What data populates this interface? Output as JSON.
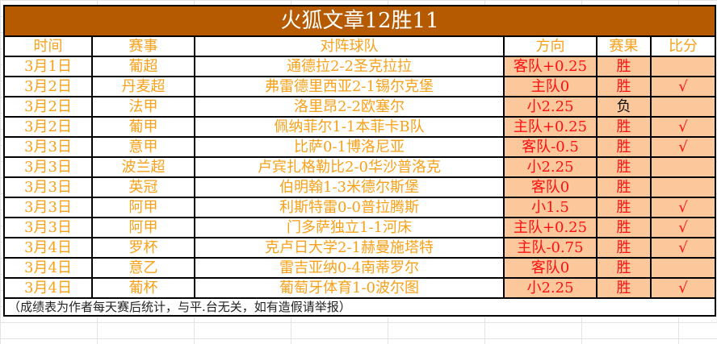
{
  "title": "火狐文章12胜11",
  "headers": [
    "时间",
    "赛事",
    "对阵球队",
    "方向",
    "赛果",
    "比分"
  ],
  "rows": [
    {
      "date": "3月1日",
      "league": "葡超",
      "match": "通德拉2-2圣克拉拉",
      "pick": "客队+0.25",
      "result": "胜",
      "score": ""
    },
    {
      "date": "3月2日",
      "league": "丹麦超",
      "match": "弗雷德里西亚2-1锡尔克堡",
      "pick": "主队0",
      "result": "胜",
      "score": "√"
    },
    {
      "date": "3月2日",
      "league": "法甲",
      "match": "洛里昂2-2欧塞尔",
      "pick": "小2.25",
      "result": "负",
      "score": ""
    },
    {
      "date": "3月2日",
      "league": "葡甲",
      "match": "佩纳菲尔1-1本菲卡B队",
      "pick": "主队+0.25",
      "result": "胜",
      "score": "√"
    },
    {
      "date": "3月3日",
      "league": "意甲",
      "match": "比萨0-1博洛尼亚",
      "pick": "客队-0.5",
      "result": "胜",
      "score": "√"
    },
    {
      "date": "3月3日",
      "league": "波兰超",
      "match": "卢宾扎格勒比2-0华沙普洛克",
      "pick": "小2.25",
      "result": "胜",
      "score": ""
    },
    {
      "date": "3月3日",
      "league": "英冠",
      "match": "伯明翰1-3米德尔斯堡",
      "pick": "客队0",
      "result": "胜",
      "score": ""
    },
    {
      "date": "3月3日",
      "league": "阿甲",
      "match": "利斯特雷0-0普拉腾斯",
      "pick": "小1.5",
      "result": "胜",
      "score": "√"
    },
    {
      "date": "3月3日",
      "league": "阿甲",
      "match": "门多萨独立1-1河床",
      "pick": "主队+0.25",
      "result": "胜",
      "score": "√"
    },
    {
      "date": "3月4日",
      "league": "罗杯",
      "match": "克卢日大学2-1赫曼施塔特",
      "pick": "主队-0.75",
      "result": "胜",
      "score": "√"
    },
    {
      "date": "3月4日",
      "league": "意乙",
      "match": "雷吉亚纳0-4南蒂罗尔",
      "pick": "客队0",
      "result": "胜",
      "score": ""
    },
    {
      "date": "3月4日",
      "league": "葡杯",
      "match": "葡萄牙体育1-0波尔图",
      "pick": "小2.25",
      "result": "胜",
      "score": "√"
    }
  ],
  "footer": "（成绩表为作者每天赛后统计，与平.台无关，如有造假请举报）",
  "colors": {
    "title_bg": "#b55a00",
    "text_orange": "#f7a11a",
    "pick_bg": "#fcc89b",
    "pick_text": "#ff1010"
  }
}
